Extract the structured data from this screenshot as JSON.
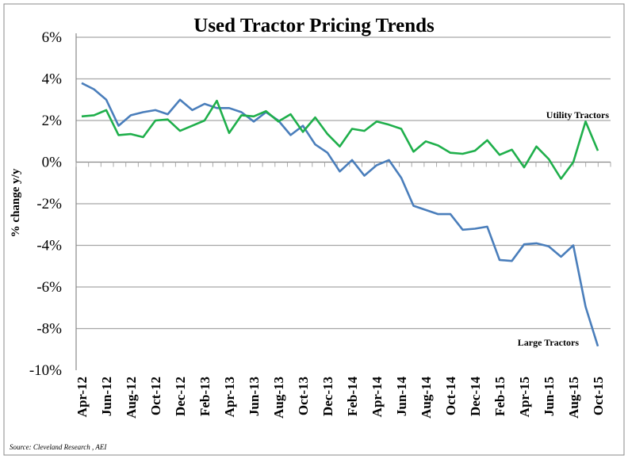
{
  "chart_data": {
    "type": "line",
    "title": "Used Tractor Pricing Trends",
    "xlabel": "",
    "ylabel": "% change y/y",
    "ylim": [
      -10,
      6
    ],
    "yticks": [
      6,
      4,
      2,
      0,
      -2,
      -4,
      -6,
      -8,
      -10
    ],
    "ytick_labels": [
      "6%",
      "4%",
      "2%",
      "0%",
      "-2%",
      "-4%",
      "-6%",
      "-8%",
      "-10%"
    ],
    "grid": true,
    "x": [
      "Apr-12",
      "May-12",
      "Jun-12",
      "Jul-12",
      "Aug-12",
      "Sep-12",
      "Oct-12",
      "Nov-12",
      "Dec-12",
      "Jan-13",
      "Feb-13",
      "Mar-13",
      "Apr-13",
      "May-13",
      "Jun-13",
      "Jul-13",
      "Aug-13",
      "Sep-13",
      "Oct-13",
      "Nov-13",
      "Dec-13",
      "Jan-14",
      "Feb-14",
      "Mar-14",
      "Apr-14",
      "May-14",
      "Jun-14",
      "Jul-14",
      "Aug-14",
      "Sep-14",
      "Oct-14",
      "Nov-14",
      "Dec-14",
      "Jan-15",
      "Feb-15",
      "Mar-15",
      "Apr-15",
      "May-15",
      "Jun-15",
      "Jul-15",
      "Aug-15",
      "Sep-15",
      "Oct-15"
    ],
    "xtick_labels": [
      "Apr-12",
      "Jun-12",
      "Aug-12",
      "Oct-12",
      "Dec-12",
      "Feb-13",
      "Apr-13",
      "Jun-13",
      "Aug-13",
      "Oct-13",
      "Dec-13",
      "Feb-14",
      "Apr-14",
      "Jun-14",
      "Aug-14",
      "Oct-14",
      "Dec-14",
      "Feb-15",
      "Apr-15",
      "Jun-15",
      "Aug-15",
      "Oct-15"
    ],
    "series": [
      {
        "name": "Large Tractors",
        "color": "#4a7ebb",
        "values": [
          3.8,
          3.5,
          3.0,
          1.75,
          2.25,
          2.4,
          2.5,
          2.3,
          3.0,
          2.5,
          2.8,
          2.6,
          2.6,
          2.4,
          1.95,
          2.4,
          2.0,
          1.3,
          1.75,
          0.85,
          0.45,
          -0.45,
          0.1,
          -0.65,
          -0.15,
          0.1,
          -0.75,
          -2.1,
          -2.3,
          -2.5,
          -2.5,
          -3.25,
          -3.2,
          -3.1,
          -4.7,
          -4.75,
          -3.95,
          -3.9,
          -4.05,
          -4.55,
          -4.0,
          -6.95,
          -8.85
        ]
      },
      {
        "name": "Utility Tractors",
        "color": "#1faf4b",
        "values": [
          2.2,
          2.25,
          2.5,
          1.3,
          1.35,
          1.2,
          2.0,
          2.05,
          1.5,
          1.75,
          2.0,
          2.95,
          1.4,
          2.25,
          2.2,
          2.45,
          1.95,
          2.3,
          1.45,
          2.15,
          1.35,
          0.75,
          1.6,
          1.5,
          1.95,
          1.8,
          1.6,
          0.5,
          1.0,
          0.8,
          0.45,
          0.4,
          0.55,
          1.05,
          0.35,
          0.6,
          -0.25,
          0.75,
          0.15,
          -0.8,
          0.0,
          1.95,
          0.55
        ]
      }
    ],
    "legend": "inline-labels",
    "source": "Source: Cleveland Research , AEI"
  }
}
